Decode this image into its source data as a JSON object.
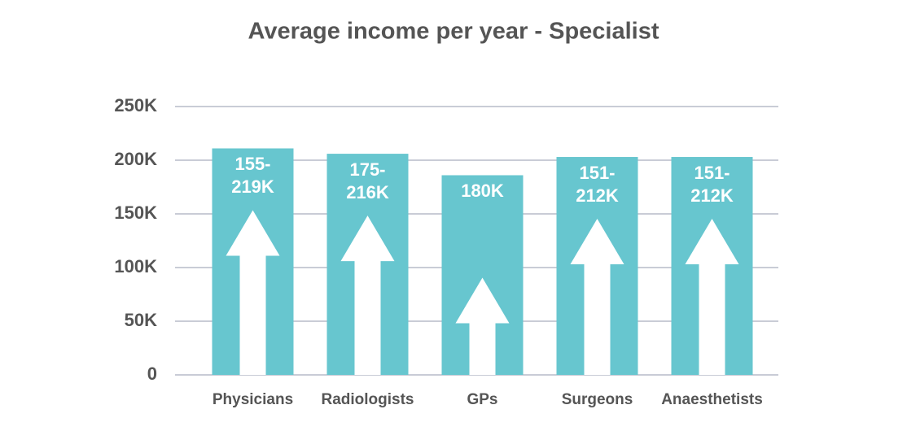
{
  "chart_data": {
    "type": "bar",
    "title": "Average income per year - Specialist",
    "categories": [
      "Physicians",
      "Radiologists",
      "GPs",
      "Surgeons",
      "Anaesthetists"
    ],
    "values": [
      211000,
      206000,
      186000,
      203000,
      203000
    ],
    "range_labels": [
      "155-219K",
      "175-216K",
      "180K",
      "151-212K",
      "151-212K"
    ],
    "color": "#67c6cf",
    "ylim": [
      0,
      250000
    ],
    "yticks": [
      0,
      {
        "value": 50000,
        "label": "50K"
      },
      {
        "value": 100000,
        "label": "100K"
      },
      {
        "value": 150000,
        "label": "150K"
      },
      {
        "value": 200000,
        "label": "200K"
      },
      {
        "value": 250000,
        "label": "250K"
      }
    ],
    "grid": true
  }
}
